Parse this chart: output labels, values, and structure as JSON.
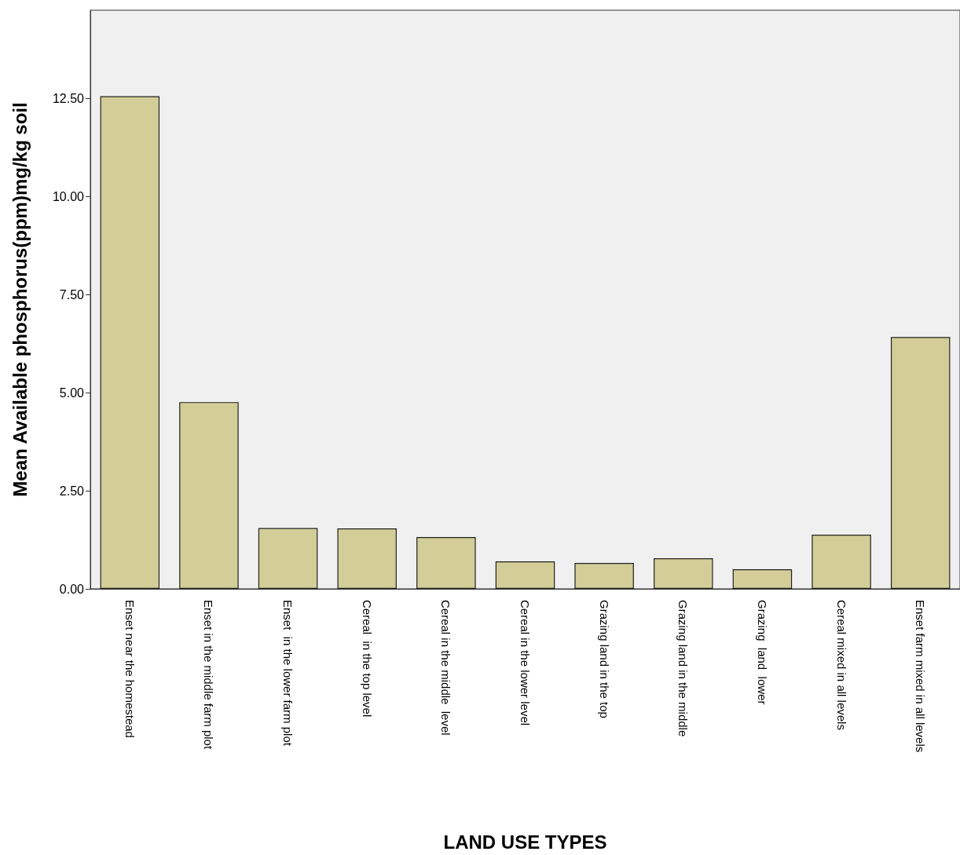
{
  "chart_data": {
    "type": "bar",
    "xlabel": "LAND USE TYPES",
    "ylabel": "Mean Available phosphorus(ppm)mg/kg soil",
    "categories": [
      "Enset near the homestead",
      "Enset in the middle farm plot",
      "Enset  in the lower farm plot",
      "Cereal  in the top level",
      "Cereal in the middle  level",
      "Cereal in the lower level",
      "Grazing land in the top",
      "Grazing land in the middle",
      "Grazing  land  lower",
      "Cereal mixed in all levels",
      "Enset farm mixed in all levels"
    ],
    "values": [
      12.56,
      4.76,
      1.55,
      1.54,
      1.32,
      0.7,
      0.66,
      0.78,
      0.5,
      1.38,
      6.42
    ],
    "color": "#d3ce97",
    "ylim": [
      0,
      14.75
    ],
    "yticks": [
      {
        "value": 0,
        "label": "0.00"
      },
      {
        "value": 2.5,
        "label": "2.50"
      },
      {
        "value": 5,
        "label": "5.00"
      },
      {
        "value": 7.5,
        "label": "7.50"
      },
      {
        "value": 10,
        "label": "10.00"
      },
      {
        "value": 12.5,
        "label": "12.50"
      }
    ],
    "grid": false
  }
}
